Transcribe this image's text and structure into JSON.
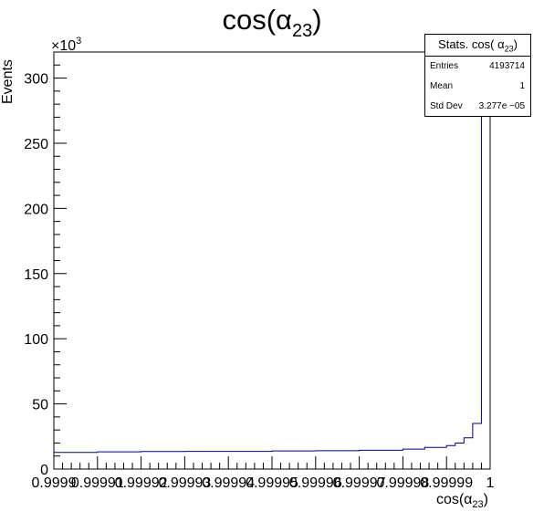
{
  "chart_data": {
    "type": "bar",
    "title": "cos(α23)",
    "title_base": "cos(α",
    "title_sub": "23",
    "title_close": ")",
    "xlabel": "cos(α23)",
    "xlabel_base": "cos(α",
    "xlabel_sub": "23",
    "xlabel_close": ")",
    "ylabel": "Events",
    "y_exponent_base": "×10",
    "y_exponent": "3",
    "y_multiplier": 1000,
    "xlim": [
      0.9999,
      1.0
    ],
    "ylim": [
      0,
      320000
    ],
    "x_tick_labels": [
      "0.9999",
      "0.99991",
      "0.99992",
      "0.99993",
      "0.99994",
      "0.99995",
      "0.99996",
      "0.99997",
      "0.99998",
      "0.99999",
      "1"
    ],
    "x_tick_values": [
      0.9999,
      0.99991,
      0.99992,
      0.99993,
      0.99994,
      0.99995,
      0.99996,
      0.99997,
      0.99998,
      0.99999,
      1.0
    ],
    "y_tick_labels": [
      "0",
      "50",
      "100",
      "150",
      "200",
      "250",
      "300"
    ],
    "y_tick_values": [
      0,
      50000,
      100000,
      150000,
      200000,
      250000,
      300000
    ],
    "bin_edges": [
      0.9999,
      0.99991,
      0.99992,
      0.99993,
      0.99994,
      0.99995,
      0.99996,
      0.99997,
      0.99998,
      0.999985,
      0.99999,
      0.999992,
      0.999994,
      0.999996,
      0.999998,
      1.0
    ],
    "values": [
      12800,
      13200,
      13500,
      13600,
      13600,
      13900,
      14100,
      14400,
      15300,
      16600,
      18000,
      20000,
      24000,
      35000,
      310000
    ],
    "line_color": "#00007f",
    "grid": false,
    "legend": "none",
    "stats": {
      "title": "Stats. cos( α23)",
      "title_base": "Stats. cos( α",
      "title_sub": "23",
      "title_close": ")",
      "entries_label": "Entries",
      "entries_value": "4193714",
      "mean_label": "Mean",
      "mean_value": "1",
      "stddev_label": "Std Dev",
      "stddev_value": "3.277e −05"
    }
  }
}
